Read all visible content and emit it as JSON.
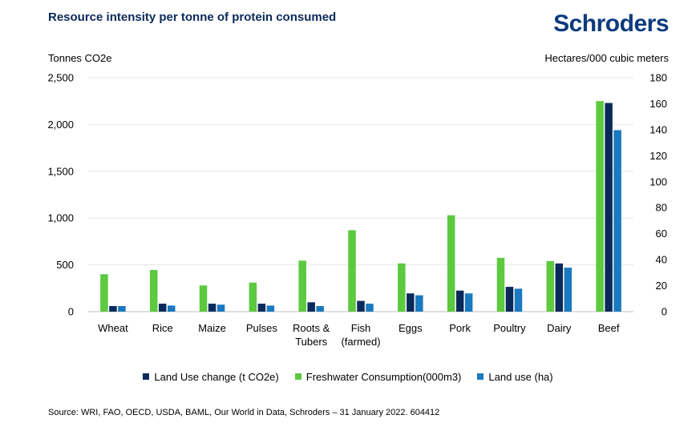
{
  "header": {
    "title": "Resource intensity per tonne of protein consumed",
    "logo": "Schroders"
  },
  "footer": {
    "source": "Source: WRI, FAO, OECD, USDA, BAML, Our World in Data, Schroders – 31 January 2022. 604412"
  },
  "chart_data": {
    "type": "bar",
    "title": "Resource intensity per tonne of protein consumed",
    "ylabel": "Tonnes CO2e",
    "y2label": "Hectares/000 cubic meters",
    "ylim": [
      0,
      2500
    ],
    "y2lim": [
      0,
      180
    ],
    "yticks": [
      "0",
      "500",
      "1,000",
      "1,500",
      "2,000",
      "2,500"
    ],
    "y2ticks": [
      "0",
      "20",
      "40",
      "60",
      "80",
      "100",
      "120",
      "140",
      "160",
      "180"
    ],
    "categories": [
      [
        "Wheat"
      ],
      [
        "Rice"
      ],
      [
        "Maize"
      ],
      [
        "Pulses"
      ],
      [
        "Roots &",
        "Tubers"
      ],
      [
        "Fish",
        "(farmed)"
      ],
      [
        "Eggs"
      ],
      [
        "Pork"
      ],
      [
        "Poultry"
      ],
      [
        "Dairy"
      ],
      [
        "Beef"
      ]
    ],
    "series": [
      {
        "name": "Freshwater Consumption(000m3)",
        "color": "#5cc93f",
        "values": [
          400,
          445,
          280,
          310,
          545,
          870,
          515,
          1030,
          575,
          540,
          2250
        ]
      },
      {
        "name": "Land Use change (t CO2e)",
        "color": "#0b2a5b",
        "values": [
          60,
          85,
          85,
          85,
          100,
          115,
          195,
          225,
          265,
          515,
          2230
        ]
      },
      {
        "name": "Land use (ha)",
        "color": "#1b79c0",
        "values": [
          60,
          65,
          75,
          65,
          60,
          85,
          175,
          195,
          245,
          470,
          1940
        ]
      }
    ],
    "legend_order": [
      1,
      0,
      2
    ],
    "legend_position": "bottom",
    "grid": true
  }
}
